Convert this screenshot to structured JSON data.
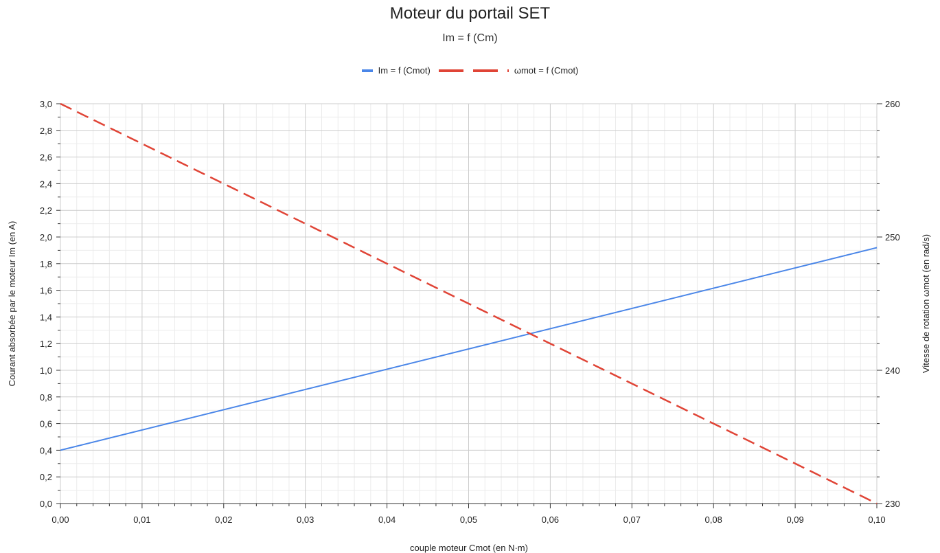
{
  "chart_data": {
    "type": "line",
    "title": "Moteur du portail SET",
    "subtitle": "Im = f (Cm)",
    "xlabel": "couple moteur Cmot (en N·m)",
    "ylabel_left": "Courant absorbée par le moteur Im (en A)",
    "ylabel_right": "Vitesse de rotation ωmot (en rad/s)",
    "xlim": [
      0,
      0.1
    ],
    "ylim_left": [
      0,
      3
    ],
    "ylim_right": [
      230,
      260
    ],
    "x_ticks": [
      "0,00",
      "0,01",
      "0,02",
      "0,03",
      "0,04",
      "0,05",
      "0,06",
      "0,07",
      "0,08",
      "0,09",
      "0,10"
    ],
    "y_left_ticks": [
      "0,0",
      "0,2",
      "0,4",
      "0,6",
      "0,8",
      "1,0",
      "1,2",
      "1,4",
      "1,6",
      "1,8",
      "2,0",
      "2,2",
      "2,4",
      "2,6",
      "2,8",
      "3,0"
    ],
    "y_right_ticks": [
      "230",
      "240",
      "250",
      "260"
    ],
    "grid": true,
    "legend_position": "top-center",
    "series": [
      {
        "name": "Im = f (Cmot)",
        "axis": "left",
        "color": "#4a86e8",
        "style": "solid",
        "x": [
          0,
          0.1
        ],
        "y": [
          0.4,
          1.92
        ]
      },
      {
        "name": "ωmot = f (Cmot)",
        "axis": "right",
        "color": "#e04436",
        "style": "dashed",
        "x": [
          0,
          0.1
        ],
        "y": [
          260,
          230
        ]
      }
    ]
  }
}
